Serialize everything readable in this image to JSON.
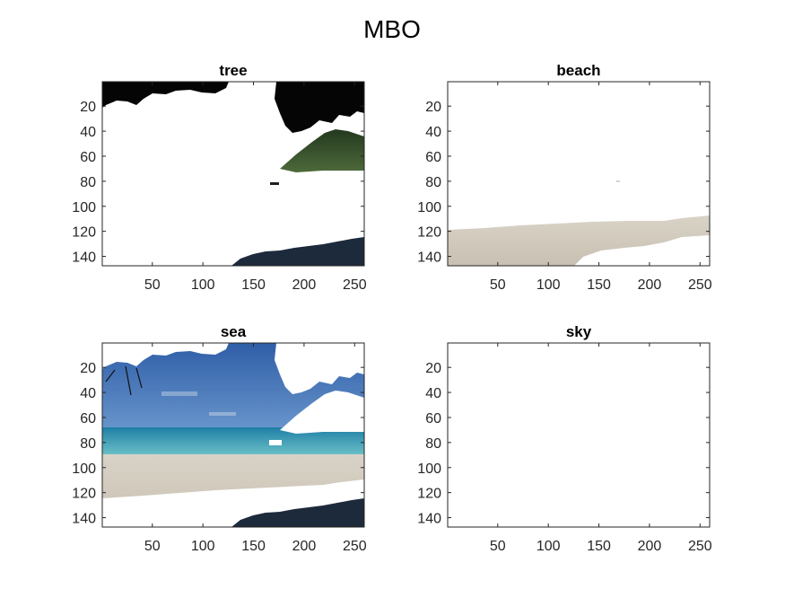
{
  "figure": {
    "title": "MBO"
  },
  "chart_data": [
    {
      "type": "image",
      "title": "tree",
      "xlim": [
        0.5,
        259.5
      ],
      "ylim": [
        0.5,
        147.5
      ],
      "y_reversed": true,
      "xticks": [
        50,
        100,
        150,
        200,
        250
      ],
      "yticks": [
        20,
        40,
        60,
        80,
        100,
        120,
        140
      ],
      "content": "segmentation mask: tree pixels visible (dark canopy top, green hill right, dark shadow bottom-right), rest white"
    },
    {
      "type": "image",
      "title": "beach",
      "xlim": [
        0.5,
        259.5
      ],
      "ylim": [
        0.5,
        147.5
      ],
      "y_reversed": true,
      "xticks": [
        50,
        100,
        150,
        200,
        250
      ],
      "yticks": [
        20,
        40,
        60,
        80,
        100,
        120,
        140
      ],
      "content": "segmentation mask: light sand band across bottom, rest white"
    },
    {
      "type": "image",
      "title": "sea",
      "xlim": [
        0.5,
        259.5
      ],
      "ylim": [
        0.5,
        147.5
      ],
      "y_reversed": true,
      "xticks": [
        50,
        100,
        150,
        200,
        250
      ],
      "yticks": [
        20,
        40,
        60,
        80,
        100,
        120,
        140
      ],
      "content": "segmentation mask: blue sky, turquoise sea and near-shore sand visible, tree areas white"
    },
    {
      "type": "image",
      "title": "sky",
      "xlim": [
        0.5,
        259.5
      ],
      "ylim": [
        0.5,
        147.5
      ],
      "y_reversed": true,
      "xticks": [
        50,
        100,
        150,
        200,
        250
      ],
      "yticks": [
        20,
        40,
        60,
        80,
        100,
        120,
        140
      ],
      "content": "segmentation mask: empty (all white)"
    }
  ],
  "colors": {
    "axis": "#262626",
    "canopy": "#050505",
    "hill": "#3f5a2f",
    "shadow": "#1d2a3c",
    "sky_blue": "#3f6fb5",
    "sea_turquoise": "#3b98b7",
    "sand": "#cfc8bd"
  }
}
